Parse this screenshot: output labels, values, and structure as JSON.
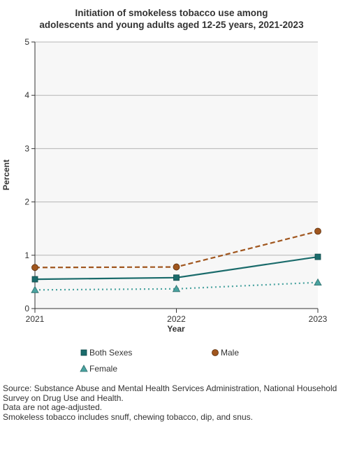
{
  "chart_data": {
    "type": "line",
    "title_lines": [
      "Initiation of smokeless tobacco use among",
      "adolescents and young adults aged 12-25 years, 2021-2023"
    ],
    "xlabel": "Year",
    "ylabel": "Percent",
    "x": [
      "2021",
      "2022",
      "2023"
    ],
    "ylim": [
      0,
      5
    ],
    "yticks": [
      "0",
      "1",
      "2",
      "3",
      "4",
      "5"
    ],
    "grid": true,
    "legend_position": "bottom",
    "series": [
      {
        "name": "Both Sexes",
        "values": [
          0.55,
          0.58,
          0.97
        ],
        "color": "#1a6b6b",
        "style": "solid",
        "marker": "square"
      },
      {
        "name": "Male",
        "values": [
          0.77,
          0.78,
          1.45
        ],
        "color": "#a0561e",
        "style": "dashed",
        "marker": "circle"
      },
      {
        "name": "Female",
        "values": [
          0.35,
          0.37,
          0.49
        ],
        "color": "#4aa3a0",
        "style": "dotted",
        "marker": "triangle"
      }
    ]
  },
  "footnotes": [
    "Source: Substance Abuse and Mental Health Services Administration, National Household Survey on Drug Use and Health.",
    "Data are not age-adjusted.",
    "Smokeless tobacco includes snuff, chewing tobacco, dip, and snus."
  ]
}
